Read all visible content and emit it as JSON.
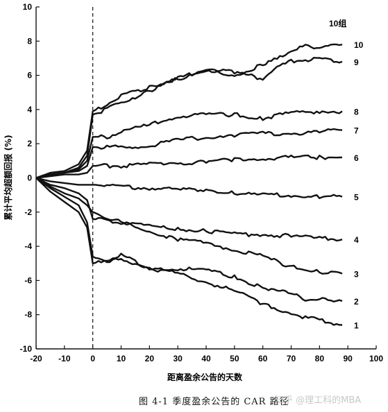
{
  "caption": "图 4-1   季度盈余公告的 CAR 路径",
  "watermark": "知乎 @理工科的MBA",
  "chart_data": {
    "type": "line",
    "title": "",
    "xlabel": "距离盈余公告的天数",
    "ylabel": "累计平均超额回报 (%)",
    "xlim": [
      -20,
      100
    ],
    "ylim": [
      -10,
      10
    ],
    "xticks": [
      -20,
      -10,
      0,
      10,
      20,
      30,
      40,
      50,
      60,
      70,
      80,
      90,
      100
    ],
    "yticks": [
      -10,
      -8,
      -6,
      -4,
      -2,
      0,
      2,
      4,
      6,
      8,
      10
    ],
    "legend_title": "10组",
    "event_line_x": 0,
    "series": [
      {
        "name": "10",
        "points": [
          [
            -20,
            0
          ],
          [
            -15,
            0.3
          ],
          [
            -10,
            0.4
          ],
          [
            -5,
            0.8
          ],
          [
            -2,
            1.6
          ],
          [
            0,
            3.9
          ],
          [
            5,
            4.3
          ],
          [
            10,
            4.8
          ],
          [
            20,
            5.3
          ],
          [
            30,
            5.8
          ],
          [
            40,
            6.2
          ],
          [
            50,
            6.0
          ],
          [
            60,
            6.6
          ],
          [
            70,
            7.3
          ],
          [
            75,
            7.8
          ],
          [
            80,
            7.6
          ],
          [
            85,
            7.7
          ],
          [
            88,
            7.8
          ]
        ]
      },
      {
        "name": "9",
        "points": [
          [
            -20,
            0
          ],
          [
            -15,
            0.2
          ],
          [
            -10,
            0.3
          ],
          [
            -5,
            0.6
          ],
          [
            -2,
            1.3
          ],
          [
            0,
            3.7
          ],
          [
            5,
            4.0
          ],
          [
            10,
            4.4
          ],
          [
            20,
            5.1
          ],
          [
            30,
            5.8
          ],
          [
            40,
            6.4
          ],
          [
            50,
            6.2
          ],
          [
            55,
            6.0
          ],
          [
            60,
            5.8
          ],
          [
            65,
            6.5
          ],
          [
            70,
            6.8
          ],
          [
            75,
            6.9
          ],
          [
            80,
            7.0
          ],
          [
            85,
            6.8
          ],
          [
            88,
            6.8
          ]
        ]
      },
      {
        "name": "8",
        "points": [
          [
            -20,
            0
          ],
          [
            -15,
            0.2
          ],
          [
            -10,
            0.3
          ],
          [
            -5,
            0.5
          ],
          [
            -2,
            1.0
          ],
          [
            0,
            2.4
          ],
          [
            5,
            2.4
          ],
          [
            10,
            2.7
          ],
          [
            20,
            3.1
          ],
          [
            30,
            3.6
          ],
          [
            40,
            3.7
          ],
          [
            50,
            3.7
          ],
          [
            60,
            3.5
          ],
          [
            70,
            3.8
          ],
          [
            80,
            3.9
          ],
          [
            88,
            3.9
          ]
        ]
      },
      {
        "name": "7",
        "points": [
          [
            -20,
            0
          ],
          [
            -15,
            0.2
          ],
          [
            -10,
            0.3
          ],
          [
            -5,
            0.4
          ],
          [
            -2,
            0.7
          ],
          [
            0,
            1.8
          ],
          [
            5,
            1.8
          ],
          [
            10,
            1.8
          ],
          [
            20,
            1.9
          ],
          [
            30,
            2.2
          ],
          [
            40,
            2.4
          ],
          [
            50,
            2.5
          ],
          [
            60,
            2.6
          ],
          [
            70,
            2.6
          ],
          [
            80,
            2.7
          ],
          [
            88,
            2.8
          ]
        ]
      },
      {
        "name": "6",
        "points": [
          [
            -20,
            0
          ],
          [
            -15,
            0.1
          ],
          [
            -10,
            0.2
          ],
          [
            -5,
            0.2
          ],
          [
            -2,
            0.3
          ],
          [
            0,
            0.7
          ],
          [
            5,
            0.7
          ],
          [
            10,
            0.7
          ],
          [
            20,
            0.8
          ],
          [
            30,
            0.9
          ],
          [
            40,
            0.9
          ],
          [
            50,
            1.1
          ],
          [
            60,
            1.1
          ],
          [
            70,
            1.2
          ],
          [
            80,
            1.2
          ],
          [
            88,
            1.2
          ]
        ]
      },
      {
        "name": "5",
        "points": [
          [
            -20,
            0
          ],
          [
            -15,
            -0.2
          ],
          [
            -10,
            -0.3
          ],
          [
            -5,
            -0.4
          ],
          [
            -2,
            -0.4
          ],
          [
            0,
            -0.4
          ],
          [
            5,
            -0.4
          ],
          [
            10,
            -0.5
          ],
          [
            20,
            -0.6
          ],
          [
            30,
            -0.7
          ],
          [
            40,
            -0.7
          ],
          [
            50,
            -0.9
          ],
          [
            60,
            -1.0
          ],
          [
            70,
            -1.0
          ],
          [
            80,
            -1.1
          ],
          [
            88,
            -1.1
          ]
        ]
      },
      {
        "name": "4",
        "points": [
          [
            -20,
            0
          ],
          [
            -15,
            -0.4
          ],
          [
            -10,
            -0.6
          ],
          [
            -5,
            -0.9
          ],
          [
            -2,
            -1.3
          ],
          [
            0,
            -2.4
          ],
          [
            5,
            -2.5
          ],
          [
            10,
            -2.6
          ],
          [
            20,
            -2.8
          ],
          [
            30,
            -3.0
          ],
          [
            40,
            -3.1
          ],
          [
            50,
            -3.3
          ],
          [
            60,
            -3.3
          ],
          [
            70,
            -3.4
          ],
          [
            80,
            -3.5
          ],
          [
            88,
            -3.6
          ]
        ]
      },
      {
        "name": "3",
        "points": [
          [
            -20,
            0
          ],
          [
            -15,
            -0.5
          ],
          [
            -10,
            -0.9
          ],
          [
            -5,
            -1.2
          ],
          [
            -2,
            -1.6
          ],
          [
            0,
            -2.0
          ],
          [
            5,
            -2.3
          ],
          [
            10,
            -2.6
          ],
          [
            20,
            -3.1
          ],
          [
            30,
            -3.6
          ],
          [
            40,
            -3.8
          ],
          [
            50,
            -4.2
          ],
          [
            60,
            -4.6
          ],
          [
            70,
            -5.2
          ],
          [
            80,
            -5.5
          ],
          [
            88,
            -5.6
          ]
        ]
      },
      {
        "name": "2",
        "points": [
          [
            -20,
            0
          ],
          [
            -15,
            -0.6
          ],
          [
            -10,
            -1.1
          ],
          [
            -5,
            -1.6
          ],
          [
            -2,
            -2.6
          ],
          [
            0,
            -4.6
          ],
          [
            5,
            -5.0
          ],
          [
            10,
            -4.7
          ],
          [
            15,
            -5.1
          ],
          [
            20,
            -5.4
          ],
          [
            30,
            -5.3
          ],
          [
            40,
            -5.4
          ],
          [
            50,
            -5.8
          ],
          [
            60,
            -6.4
          ],
          [
            70,
            -6.8
          ],
          [
            75,
            -7.1
          ],
          [
            80,
            -7.0
          ],
          [
            85,
            -7.3
          ],
          [
            88,
            -7.2
          ]
        ]
      },
      {
        "name": "1",
        "points": [
          [
            -20,
            0
          ],
          [
            -15,
            -0.8
          ],
          [
            -10,
            -1.4
          ],
          [
            -5,
            -2.0
          ],
          [
            -2,
            -2.9
          ],
          [
            0,
            -5.0
          ],
          [
            5,
            -4.8
          ],
          [
            10,
            -4.5
          ],
          [
            15,
            -4.9
          ],
          [
            20,
            -5.2
          ],
          [
            30,
            -5.6
          ],
          [
            40,
            -6.1
          ],
          [
            50,
            -6.6
          ],
          [
            60,
            -7.4
          ],
          [
            70,
            -7.9
          ],
          [
            75,
            -8.2
          ],
          [
            80,
            -8.3
          ],
          [
            85,
            -8.5
          ],
          [
            88,
            -8.6
          ]
        ]
      }
    ]
  }
}
